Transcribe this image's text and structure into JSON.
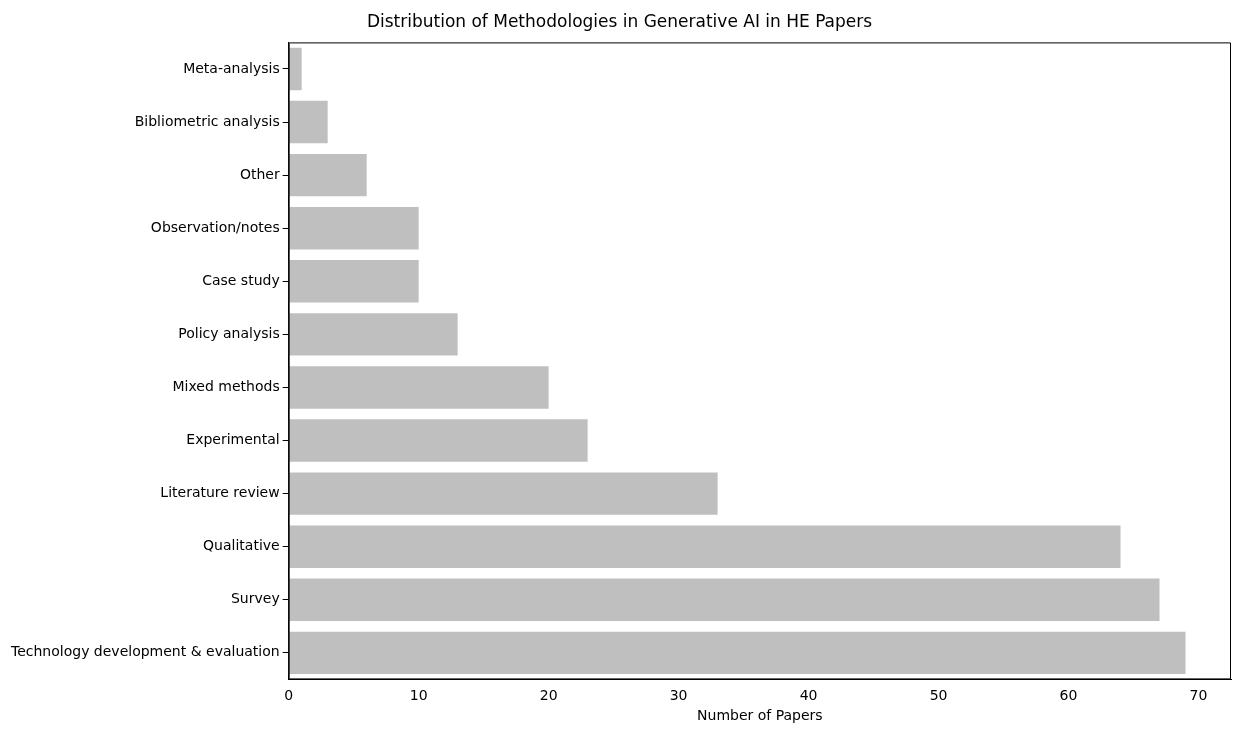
{
  "chart_data": {
    "type": "bar",
    "orientation": "horizontal",
    "title": "Distribution of Methodologies in Generative AI in HE Papers",
    "xlabel": "Number of Papers",
    "categories": [
      "Meta-analysis",
      "Bibliometric analysis",
      "Other",
      "Observation/notes",
      "Case study",
      "Policy analysis",
      "Mixed methods",
      "Experimental",
      "Literature review",
      "Qualitative",
      "Survey",
      "Technology development & evaluation"
    ],
    "values": [
      1,
      3,
      6,
      10,
      10,
      13,
      20,
      23,
      33,
      64,
      67,
      69
    ],
    "color": "#bfbfbf",
    "xlim": [
      0,
      72.5
    ],
    "xticks": [
      0,
      10,
      20,
      30,
      40,
      50,
      60,
      70
    ],
    "grid": false
  }
}
